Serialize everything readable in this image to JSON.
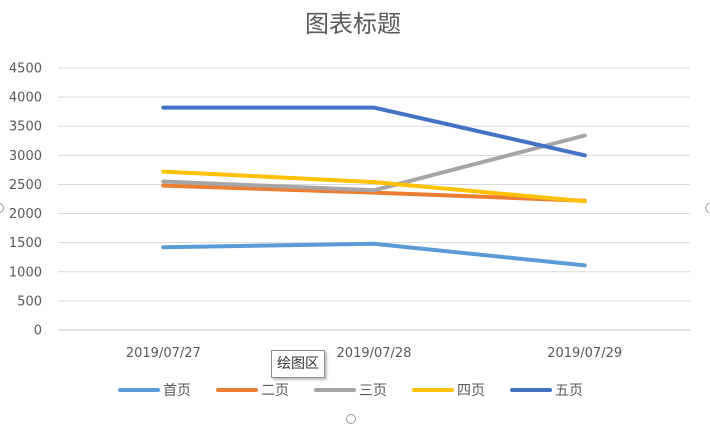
{
  "chart_data": {
    "type": "line",
    "title": "图表标题",
    "categories": [
      "2019/07/27",
      "2019/07/28",
      "2019/07/29"
    ],
    "ylim": [
      0,
      4500
    ],
    "yticks": [
      0,
      500,
      1000,
      1500,
      2000,
      2500,
      3000,
      3500,
      4000,
      4500
    ],
    "grid": true,
    "legend_position": "bottom",
    "series": [
      {
        "name": "首页",
        "color": "#5B9BD5",
        "values": [
          1420,
          1480,
          1110
        ]
      },
      {
        "name": "二页",
        "color": "#ED7D31",
        "values": [
          2480,
          2360,
          2220
        ]
      },
      {
        "name": "三页",
        "color": "#A5A5A5",
        "values": [
          2550,
          2400,
          3340
        ]
      },
      {
        "name": "四页",
        "color": "#FFC000",
        "values": [
          2720,
          2540,
          2210
        ]
      },
      {
        "name": "五页",
        "color": "#4472C4",
        "values": [
          3820,
          3820,
          3000
        ]
      }
    ]
  },
  "tooltip": {
    "label": "绘图区"
  }
}
